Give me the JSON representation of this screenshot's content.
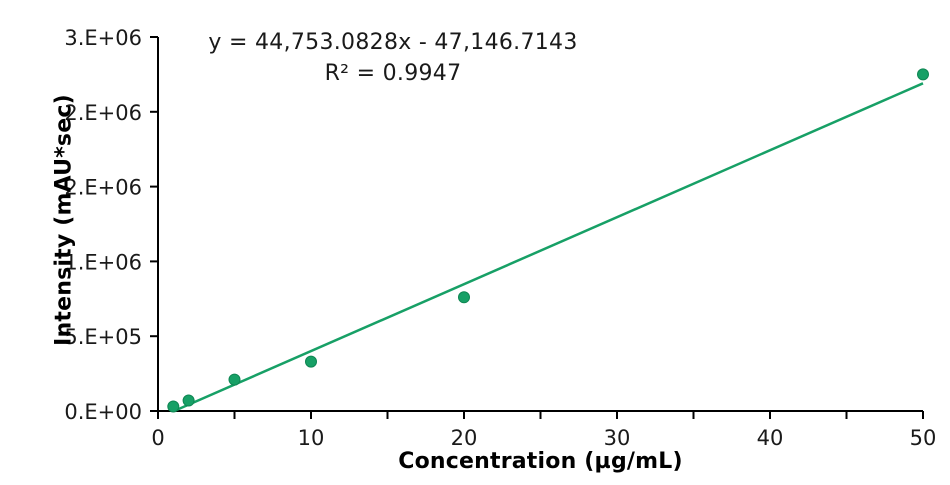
{
  "figure": {
    "kind": "calibration-curve"
  },
  "chart_data": {
    "type": "scatter",
    "title": "",
    "xlabel": "Concentration (µg/mL)",
    "ylabel": "Intensity (mAU*sec)",
    "x": [
      1,
      2,
      5,
      10,
      20,
      50
    ],
    "y": [
      30000,
      70000,
      210000,
      330000,
      760000,
      2250000
    ],
    "xlim": [
      0,
      50
    ],
    "ylim": [
      0,
      2500000
    ],
    "x_tick_step": 5,
    "x_label_values": [
      0,
      10,
      20,
      30,
      40,
      50
    ],
    "x_tick_labels": [
      "0",
      "10",
      "20",
      "30",
      "40",
      "50"
    ],
    "y_tick_values": [
      0,
      500000,
      1000000,
      1500000,
      2000000,
      2500000
    ],
    "y_tick_labels": [
      "0.E+00",
      "5.E+05",
      "1.E+06",
      "2.E+06",
      "2.E+06",
      "3.E+06"
    ],
    "grid": false,
    "legend": false,
    "trendline": {
      "type": "linear",
      "slope": 44753.0828,
      "intercept": -47146.7143,
      "equation": "y = 44,753.0828x - 47,146.7143",
      "r_squared": 0.9947,
      "r_squared_label": "R² = 0.9947"
    },
    "colors": {
      "series": "#17A066",
      "marker_edge": "#0F8653",
      "axis": "#000000",
      "text": "#1a1a1a"
    }
  }
}
